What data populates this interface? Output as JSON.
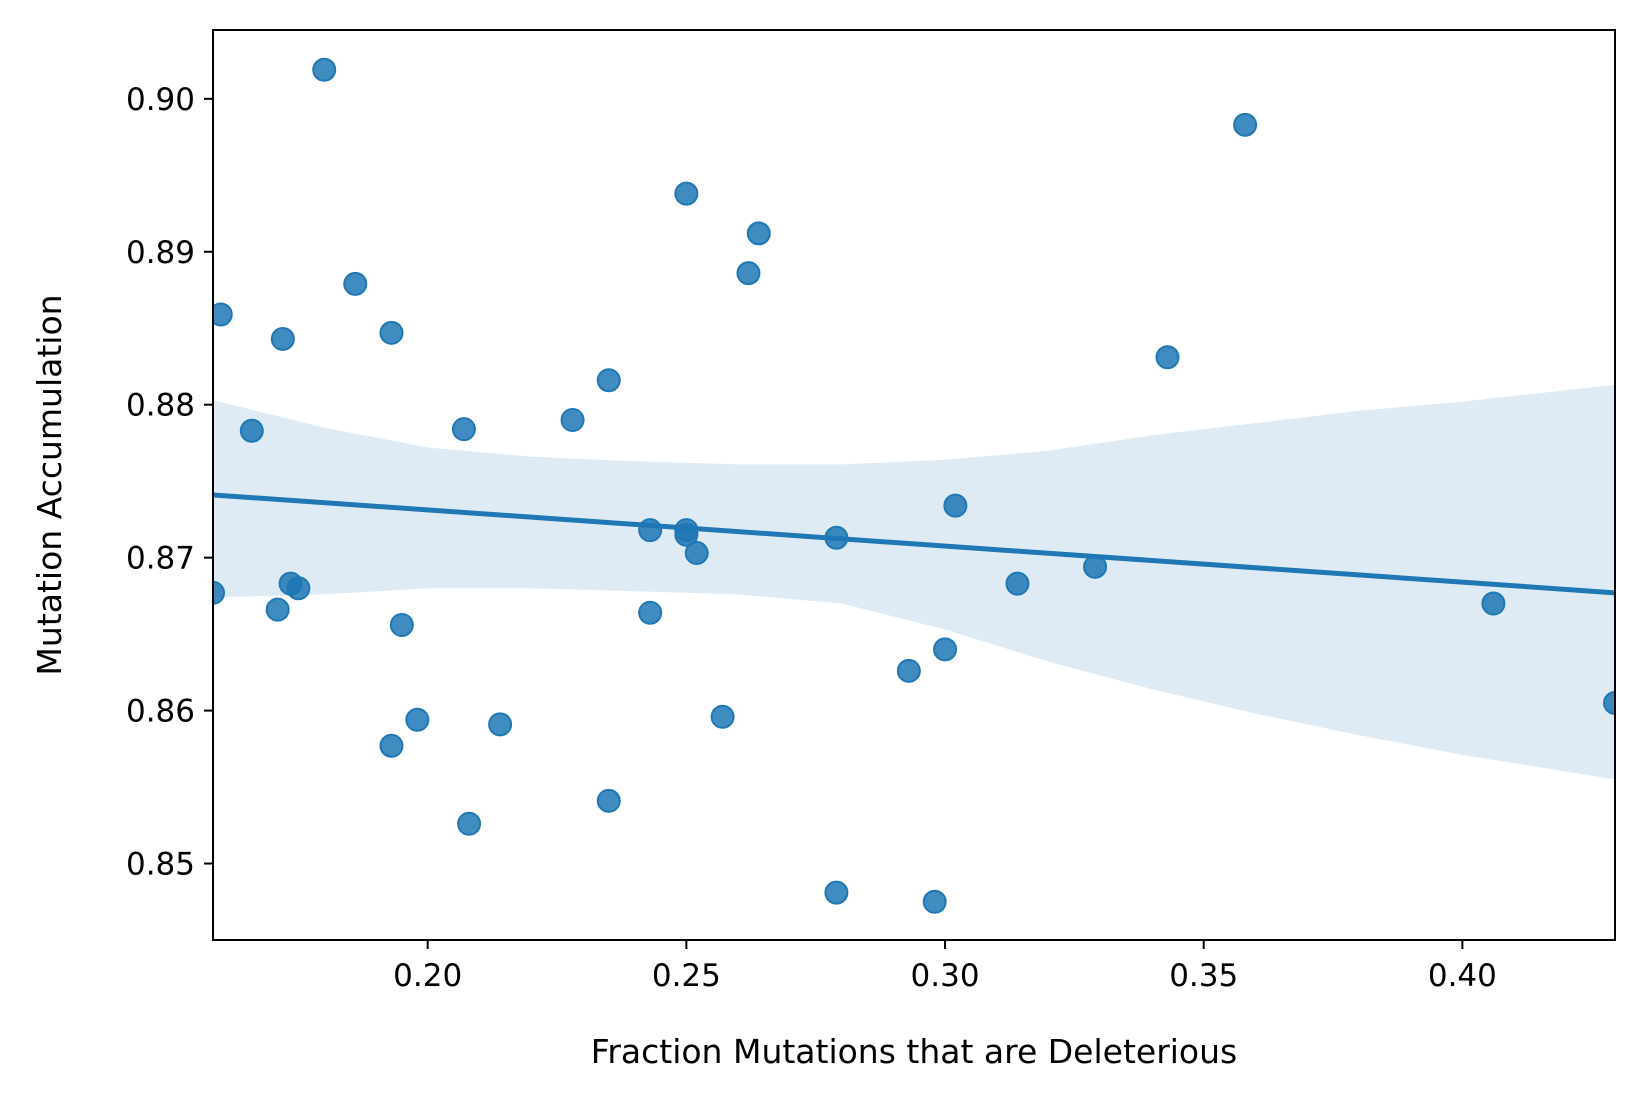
{
  "chart_data": {
    "type": "scatter",
    "title": "",
    "xlabel": "Fraction Mutations that are Deleterious",
    "ylabel": "Mutation Accumulation",
    "xlim": [
      0.1585,
      0.4295
    ],
    "ylim": [
      0.845,
      0.9045
    ],
    "xticks": [
      0.2,
      0.25,
      0.3,
      0.35,
      0.4
    ],
    "xtick_labels": [
      "0.20",
      "0.25",
      "0.30",
      "0.35",
      "0.40"
    ],
    "yticks": [
      0.85,
      0.86,
      0.87,
      0.88,
      0.89,
      0.9
    ],
    "ytick_labels": [
      "0.85",
      "0.86",
      "0.87",
      "0.88",
      "0.89",
      "0.90"
    ],
    "grid": false,
    "color": "#1f77b4",
    "points": [
      {
        "x": 0.1585,
        "y": 0.8677
      },
      {
        "x": 0.16,
        "y": 0.8859
      },
      {
        "x": 0.166,
        "y": 0.8783
      },
      {
        "x": 0.171,
        "y": 0.8666
      },
      {
        "x": 0.172,
        "y": 0.8843
      },
      {
        "x": 0.1735,
        "y": 0.8683
      },
      {
        "x": 0.175,
        "y": 0.868
      },
      {
        "x": 0.18,
        "y": 0.9019
      },
      {
        "x": 0.186,
        "y": 0.8879
      },
      {
        "x": 0.193,
        "y": 0.8847
      },
      {
        "x": 0.193,
        "y": 0.8577
      },
      {
        "x": 0.195,
        "y": 0.8656
      },
      {
        "x": 0.198,
        "y": 0.8594
      },
      {
        "x": 0.207,
        "y": 0.8784
      },
      {
        "x": 0.208,
        "y": 0.8526
      },
      {
        "x": 0.214,
        "y": 0.8591
      },
      {
        "x": 0.228,
        "y": 0.879
      },
      {
        "x": 0.235,
        "y": 0.8816
      },
      {
        "x": 0.235,
        "y": 0.8541
      },
      {
        "x": 0.243,
        "y": 0.8718
      },
      {
        "x": 0.243,
        "y": 0.8664
      },
      {
        "x": 0.25,
        "y": 0.8938
      },
      {
        "x": 0.25,
        "y": 0.8718
      },
      {
        "x": 0.25,
        "y": 0.8715
      },
      {
        "x": 0.252,
        "y": 0.8703
      },
      {
        "x": 0.257,
        "y": 0.8596
      },
      {
        "x": 0.262,
        "y": 0.8886
      },
      {
        "x": 0.264,
        "y": 0.8912
      },
      {
        "x": 0.279,
        "y": 0.8713
      },
      {
        "x": 0.279,
        "y": 0.8481
      },
      {
        "x": 0.293,
        "y": 0.8626
      },
      {
        "x": 0.298,
        "y": 0.8475
      },
      {
        "x": 0.3,
        "y": 0.864
      },
      {
        "x": 0.302,
        "y": 0.8734
      },
      {
        "x": 0.314,
        "y": 0.8683
      },
      {
        "x": 0.329,
        "y": 0.8694
      },
      {
        "x": 0.343,
        "y": 0.8831
      },
      {
        "x": 0.358,
        "y": 0.8983
      },
      {
        "x": 0.406,
        "y": 0.867
      },
      {
        "x": 0.4295,
        "y": 0.8605
      }
    ],
    "regression": {
      "x": [
        0.1585,
        0.4295
      ],
      "y": [
        0.8741,
        0.8677
      ]
    },
    "confidence_band": {
      "x": [
        0.1585,
        0.18,
        0.2,
        0.22,
        0.24,
        0.26,
        0.28,
        0.3,
        0.32,
        0.34,
        0.36,
        0.38,
        0.4,
        0.4295
      ],
      "upper": [
        0.8803,
        0.8785,
        0.8772,
        0.8766,
        0.8763,
        0.8761,
        0.8761,
        0.8764,
        0.877,
        0.878,
        0.8788,
        0.8796,
        0.8802,
        0.8813
      ],
      "lower": [
        0.8674,
        0.8676,
        0.868,
        0.868,
        0.8678,
        0.8676,
        0.867,
        0.8653,
        0.8632,
        0.8614,
        0.8598,
        0.8584,
        0.8571,
        0.8555
      ]
    }
  }
}
